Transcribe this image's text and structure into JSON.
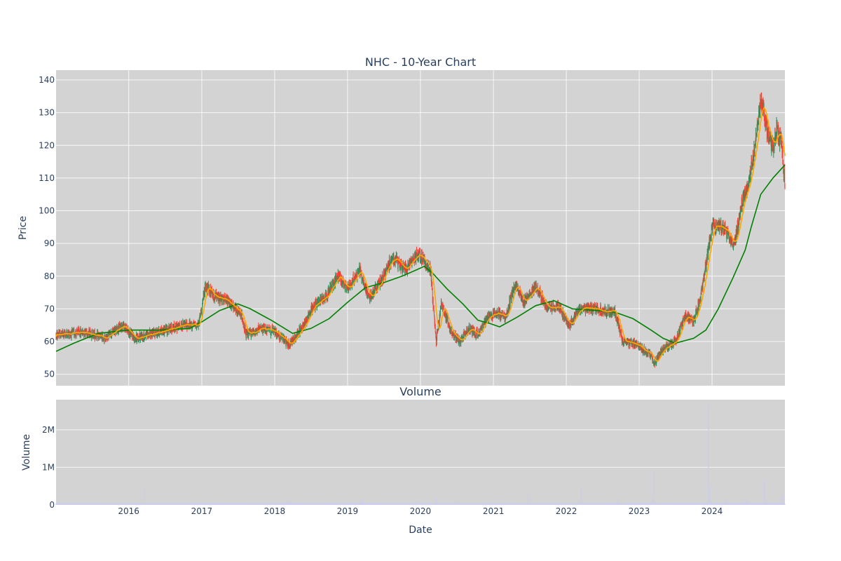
{
  "chart_data": [
    {
      "type": "candlestick",
      "title": "NHC - 10-Year Chart",
      "ylabel": "Price",
      "xlabel": "",
      "ylim": [
        46.5,
        143
      ],
      "xlim": [
        "2015-01-02",
        "2024-12-31"
      ],
      "yticks": [
        50,
        60,
        70,
        80,
        90,
        100,
        110,
        120,
        130,
        140
      ],
      "xgrid_dates": [
        "2016-01-01",
        "2017-01-01",
        "2018-01-01",
        "2019-01-01",
        "2020-01-01",
        "2021-01-01",
        "2022-01-01",
        "2023-01-01",
        "2024-01-01"
      ],
      "grid": true,
      "background": "#d3d3d3",
      "colors": {
        "increasing": "#2e8b57",
        "decreasing": "#ff3b30",
        "ma_short": "#ffa500",
        "ma_long": "#008000"
      },
      "price_path": [
        [
          "2015-01-02",
          62
        ],
        [
          "2015-06-01",
          63
        ],
        [
          "2015-09-01",
          61
        ],
        [
          "2015-12-01",
          65
        ],
        [
          "2016-02-01",
          61
        ],
        [
          "2016-06-01",
          63
        ],
        [
          "2016-10-01",
          65
        ],
        [
          "2016-12-15",
          65
        ],
        [
          "2017-01-20",
          77
        ],
        [
          "2017-03-01",
          74
        ],
        [
          "2017-05-15",
          72
        ],
        [
          "2017-07-20",
          68
        ],
        [
          "2017-08-10",
          62
        ],
        [
          "2017-11-01",
          64
        ],
        [
          "2018-01-01",
          63
        ],
        [
          "2018-03-15",
          59
        ],
        [
          "2018-05-15",
          64
        ],
        [
          "2018-07-15",
          71
        ],
        [
          "2018-09-15",
          74
        ],
        [
          "2018-11-15",
          80
        ],
        [
          "2019-01-01",
          76
        ],
        [
          "2019-03-01",
          82
        ],
        [
          "2019-04-20",
          73
        ],
        [
          "2019-07-01",
          80
        ],
        [
          "2019-08-15",
          86
        ],
        [
          "2019-10-15",
          82
        ],
        [
          "2019-12-20",
          87
        ],
        [
          "2020-02-20",
          82
        ],
        [
          "2020-03-20",
          60
        ],
        [
          "2020-04-15",
          72
        ],
        [
          "2020-06-01",
          63
        ],
        [
          "2020-07-15",
          60
        ],
        [
          "2020-09-01",
          64
        ],
        [
          "2020-10-15",
          62
        ],
        [
          "2020-12-01",
          67
        ],
        [
          "2021-01-15",
          69
        ],
        [
          "2021-03-01",
          67
        ],
        [
          "2021-04-20",
          78
        ],
        [
          "2021-06-01",
          72
        ],
        [
          "2021-08-01",
          77
        ],
        [
          "2021-10-01",
          70
        ],
        [
          "2021-11-20",
          71
        ],
        [
          "2022-01-15",
          65
        ],
        [
          "2022-03-15",
          70
        ],
        [
          "2022-06-01",
          70
        ],
        [
          "2022-09-01",
          69
        ],
        [
          "2022-10-10",
          60
        ],
        [
          "2022-12-15",
          59
        ],
        [
          "2023-03-01",
          56
        ],
        [
          "2023-03-15",
          53
        ],
        [
          "2023-05-01",
          58
        ],
        [
          "2023-07-01",
          60
        ],
        [
          "2023-08-20",
          68
        ],
        [
          "2023-10-01",
          66
        ],
        [
          "2023-11-15",
          77
        ],
        [
          "2023-12-10",
          87
        ],
        [
          "2024-01-01",
          95
        ],
        [
          "2024-03-01",
          95
        ],
        [
          "2024-04-20",
          89
        ],
        [
          "2024-06-01",
          103
        ],
        [
          "2024-07-01",
          108
        ],
        [
          "2024-08-01",
          120
        ],
        [
          "2024-09-01",
          134
        ],
        [
          "2024-10-01",
          125
        ],
        [
          "2024-11-01",
          119
        ],
        [
          "2024-11-20",
          125
        ],
        [
          "2024-12-15",
          120
        ],
        [
          "2024-12-31",
          107
        ]
      ],
      "ma_long_path": [
        [
          "2015-01-02",
          57
        ],
        [
          "2015-04-01",
          59.5
        ],
        [
          "2015-08-01",
          62.5
        ],
        [
          "2016-01-01",
          63.5
        ],
        [
          "2016-06-01",
          63.5
        ],
        [
          "2016-11-01",
          64
        ],
        [
          "2017-01-01",
          66
        ],
        [
          "2017-04-01",
          69.5
        ],
        [
          "2017-07-01",
          71.5
        ],
        [
          "2017-09-01",
          70
        ],
        [
          "2017-12-15",
          66.5
        ],
        [
          "2018-04-01",
          62.5
        ],
        [
          "2018-07-01",
          64
        ],
        [
          "2018-10-01",
          67
        ],
        [
          "2019-01-01",
          72
        ],
        [
          "2019-04-01",
          76.5
        ],
        [
          "2019-07-01",
          78
        ],
        [
          "2019-10-01",
          80
        ],
        [
          "2019-12-15",
          82
        ],
        [
          "2020-01-20",
          83
        ],
        [
          "2020-03-01",
          81
        ],
        [
          "2020-05-15",
          76
        ],
        [
          "2020-08-01",
          71.5
        ],
        [
          "2020-10-15",
          66.5
        ],
        [
          "2020-12-15",
          65.5
        ],
        [
          "2021-02-01",
          64.5
        ],
        [
          "2021-05-01",
          67.5
        ],
        [
          "2021-08-01",
          71
        ],
        [
          "2021-11-01",
          72.5
        ],
        [
          "2022-02-01",
          70
        ],
        [
          "2022-06-01",
          69.5
        ],
        [
          "2022-09-01",
          69
        ],
        [
          "2022-12-01",
          67
        ],
        [
          "2023-03-01",
          63.5
        ],
        [
          "2023-05-01",
          61
        ],
        [
          "2023-07-01",
          59.5
        ],
        [
          "2023-10-01",
          61
        ],
        [
          "2023-12-01",
          63.5
        ],
        [
          "2024-02-01",
          70
        ],
        [
          "2024-04-15",
          79.5
        ],
        [
          "2024-06-15",
          88
        ],
        [
          "2024-07-15",
          95
        ],
        [
          "2024-09-01",
          105
        ],
        [
          "2024-11-01",
          110
        ],
        [
          "2024-12-31",
          114
        ]
      ]
    },
    {
      "type": "bar",
      "title": "Volume",
      "ylabel": "Volume",
      "xlabel": "Date",
      "ylim": [
        0,
        2800000
      ],
      "xlim": [
        "2015-01-02",
        "2024-12-31"
      ],
      "yticks": [
        0,
        1000000,
        2000000
      ],
      "ytick_labels": [
        "0",
        "1M",
        "2M"
      ],
      "xtick_dates": [
        "2016-01-01",
        "2017-01-01",
        "2018-01-01",
        "2019-01-01",
        "2020-01-01",
        "2021-01-01",
        "2022-01-01",
        "2023-01-01",
        "2024-01-01"
      ],
      "xtick_labels": [
        "2016",
        "2017",
        "2018",
        "2019",
        "2020",
        "2021",
        "2022",
        "2023",
        "2024"
      ],
      "grid": true,
      "background": "#d3d3d3",
      "bar_color": "#ccccee",
      "baseline_volume": 40000,
      "spikes": [
        [
          "2016-03-18",
          430000
        ],
        [
          "2016-06-24",
          90000
        ],
        [
          "2016-12-16",
          60000
        ],
        [
          "2017-03-17",
          70000
        ],
        [
          "2018-03-16",
          110000
        ],
        [
          "2019-03-15",
          140000
        ],
        [
          "2019-12-20",
          90000
        ],
        [
          "2020-03-20",
          200000
        ],
        [
          "2020-06-26",
          110000
        ],
        [
          "2021-06-25",
          280000
        ],
        [
          "2022-03-18",
          520000
        ],
        [
          "2022-09-16",
          150000
        ],
        [
          "2023-03-17",
          880000
        ],
        [
          "2023-03-10",
          200000
        ],
        [
          "2023-12-15",
          2650000
        ],
        [
          "2023-12-22",
          500000
        ],
        [
          "2024-03-15",
          150000
        ],
        [
          "2024-06-21",
          130000
        ],
        [
          "2024-09-20",
          680000
        ],
        [
          "2024-12-20",
          250000
        ]
      ]
    }
  ]
}
